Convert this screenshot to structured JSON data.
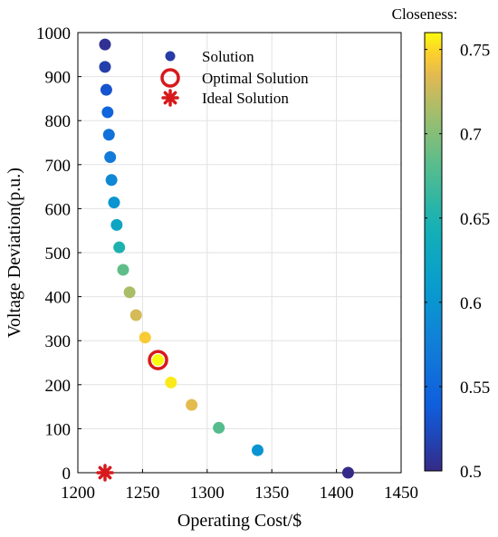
{
  "chart_data": {
    "type": "scatter",
    "title": "",
    "xlabel": "Operating Cost/$",
    "ylabel": "Voltage Deviation(p.u.)",
    "xlim": [
      1200,
      1450
    ],
    "ylim": [
      0,
      1000
    ],
    "xticks": [
      1200,
      1250,
      1300,
      1350,
      1400,
      1450
    ],
    "yticks": [
      0,
      100,
      200,
      300,
      400,
      500,
      600,
      700,
      800,
      900,
      1000
    ],
    "grid": true,
    "legend_position": "top-left",
    "series": [
      {
        "name": "Solution",
        "marker": "filled-circle",
        "points": [
          {
            "x": 1221,
            "y": 973,
            "closeness": 0.505
          },
          {
            "x": 1221,
            "y": 922,
            "closeness": 0.515
          },
          {
            "x": 1222,
            "y": 870,
            "closeness": 0.53
          },
          {
            "x": 1223,
            "y": 819,
            "closeness": 0.545
          },
          {
            "x": 1224,
            "y": 768,
            "closeness": 0.56
          },
          {
            "x": 1225,
            "y": 717,
            "closeness": 0.57
          },
          {
            "x": 1226,
            "y": 665,
            "closeness": 0.585
          },
          {
            "x": 1228,
            "y": 614,
            "closeness": 0.6
          },
          {
            "x": 1230,
            "y": 563,
            "closeness": 0.625
          },
          {
            "x": 1232,
            "y": 512,
            "closeness": 0.65
          },
          {
            "x": 1235,
            "y": 461,
            "closeness": 0.685
          },
          {
            "x": 1240,
            "y": 410,
            "closeness": 0.715
          },
          {
            "x": 1245,
            "y": 358,
            "closeness": 0.73
          },
          {
            "x": 1252,
            "y": 307,
            "closeness": 0.745
          },
          {
            "x": 1262,
            "y": 256,
            "closeness": 0.76
          },
          {
            "x": 1272,
            "y": 205,
            "closeness": 0.755
          },
          {
            "x": 1288,
            "y": 154,
            "closeness": 0.735
          },
          {
            "x": 1309,
            "y": 102,
            "closeness": 0.68
          },
          {
            "x": 1339,
            "y": 51,
            "closeness": 0.6
          },
          {
            "x": 1409,
            "y": 0,
            "closeness": 0.5
          }
        ]
      },
      {
        "name": "Optimal Solution",
        "marker": "open-circle",
        "color": "#d7191c",
        "points": [
          {
            "x": 1262,
            "y": 256
          }
        ]
      },
      {
        "name": "Ideal Solution",
        "marker": "asterisk",
        "color": "#d7191c",
        "points": [
          {
            "x": 1221,
            "y": 0
          }
        ]
      }
    ],
    "colorbar": {
      "title": "Closeness:",
      "min": 0.5,
      "max": 0.76,
      "ticks": [
        0.5,
        0.55,
        0.6,
        0.65,
        0.7,
        0.75
      ],
      "colormap": "parula"
    }
  }
}
